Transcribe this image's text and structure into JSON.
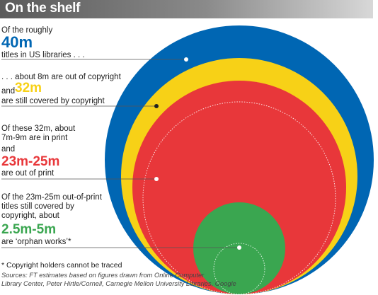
{
  "title": "On the shelf",
  "annotations": [
    {
      "pre": "Of the roughly",
      "figure": "40m",
      "post": "titles in US libraries . . .",
      "color": "#0066b3"
    },
    {
      "pre": ". . . about 8m are out of copyright",
      "and": "and",
      "figure": "32m",
      "post": "are still covered by copyright",
      "color": "#f7d117"
    },
    {
      "pre1": "Of these 32m, about",
      "pre2": "7m-9m are in print",
      "and": "and",
      "figure": "23m-25m",
      "post": "are out of print",
      "color": "#e8373a"
    },
    {
      "pre1": "Of the 23m-25m out-of-print",
      "pre2": "titles still covered by",
      "pre3": "copyright, about",
      "figure": "2.5m-5m",
      "post": "are ‘orphan works’*",
      "color": "#3aa650"
    }
  ],
  "footnote": "* Copyright holders cannot be traced",
  "sources_line1": "Sources: FT estimates based on figures drawn from Online Computer",
  "sources_line2": "Library Center, Peter Hirtle/Cornell, Carnegie Mellon University Libraries, Google",
  "chart_data": {
    "type": "nested-circles",
    "series": [
      {
        "label": "40m",
        "value_millions": 40,
        "color": "#0066b3"
      },
      {
        "label": "32m",
        "value_millions": 32,
        "color": "#f7d117"
      },
      {
        "label": "23m-25m",
        "value_millions": [
          23,
          25
        ],
        "color": "#e8373a"
      },
      {
        "label": "2.5m-5m",
        "value_millions": [
          2.5,
          5
        ],
        "color": "#3aa650"
      }
    ]
  }
}
